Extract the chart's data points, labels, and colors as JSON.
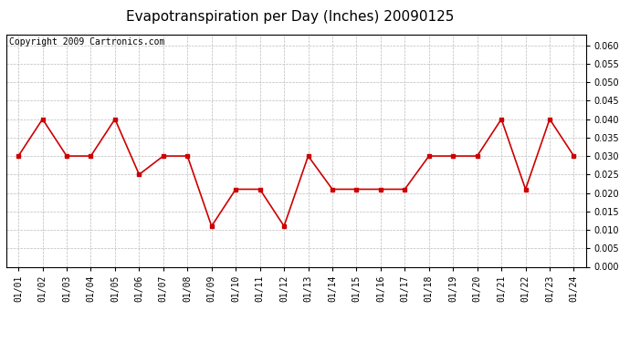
{
  "title": "Evapotranspiration per Day (Inches) 20090125",
  "copyright": "Copyright 2009 Cartronics.com",
  "x_labels": [
    "01/01",
    "01/02",
    "01/03",
    "01/04",
    "01/05",
    "01/06",
    "01/07",
    "01/08",
    "01/09",
    "01/10",
    "01/11",
    "01/12",
    "01/13",
    "01/14",
    "01/15",
    "01/16",
    "01/17",
    "01/18",
    "01/19",
    "01/20",
    "01/21",
    "01/22",
    "01/23",
    "01/24"
  ],
  "y_values": [
    0.03,
    0.04,
    0.03,
    0.03,
    0.04,
    0.025,
    0.03,
    0.03,
    0.011,
    0.021,
    0.021,
    0.011,
    0.03,
    0.021,
    0.021,
    0.021,
    0.021,
    0.03,
    0.03,
    0.03,
    0.04,
    0.021,
    0.04,
    0.03
  ],
  "line_color": "#cc0000",
  "marker": "s",
  "marker_size": 3,
  "marker_color": "#cc0000",
  "ylim": [
    0.0,
    0.063
  ],
  "ytick_min": 0.0,
  "ytick_max": 0.06,
  "ytick_step": 0.005,
  "grid_color": "#bbbbbb",
  "background_color": "#ffffff",
  "plot_bg_color": "#ffffff",
  "title_fontsize": 11,
  "copyright_fontsize": 7,
  "tick_fontsize": 7,
  "ytick_fontsize": 7
}
